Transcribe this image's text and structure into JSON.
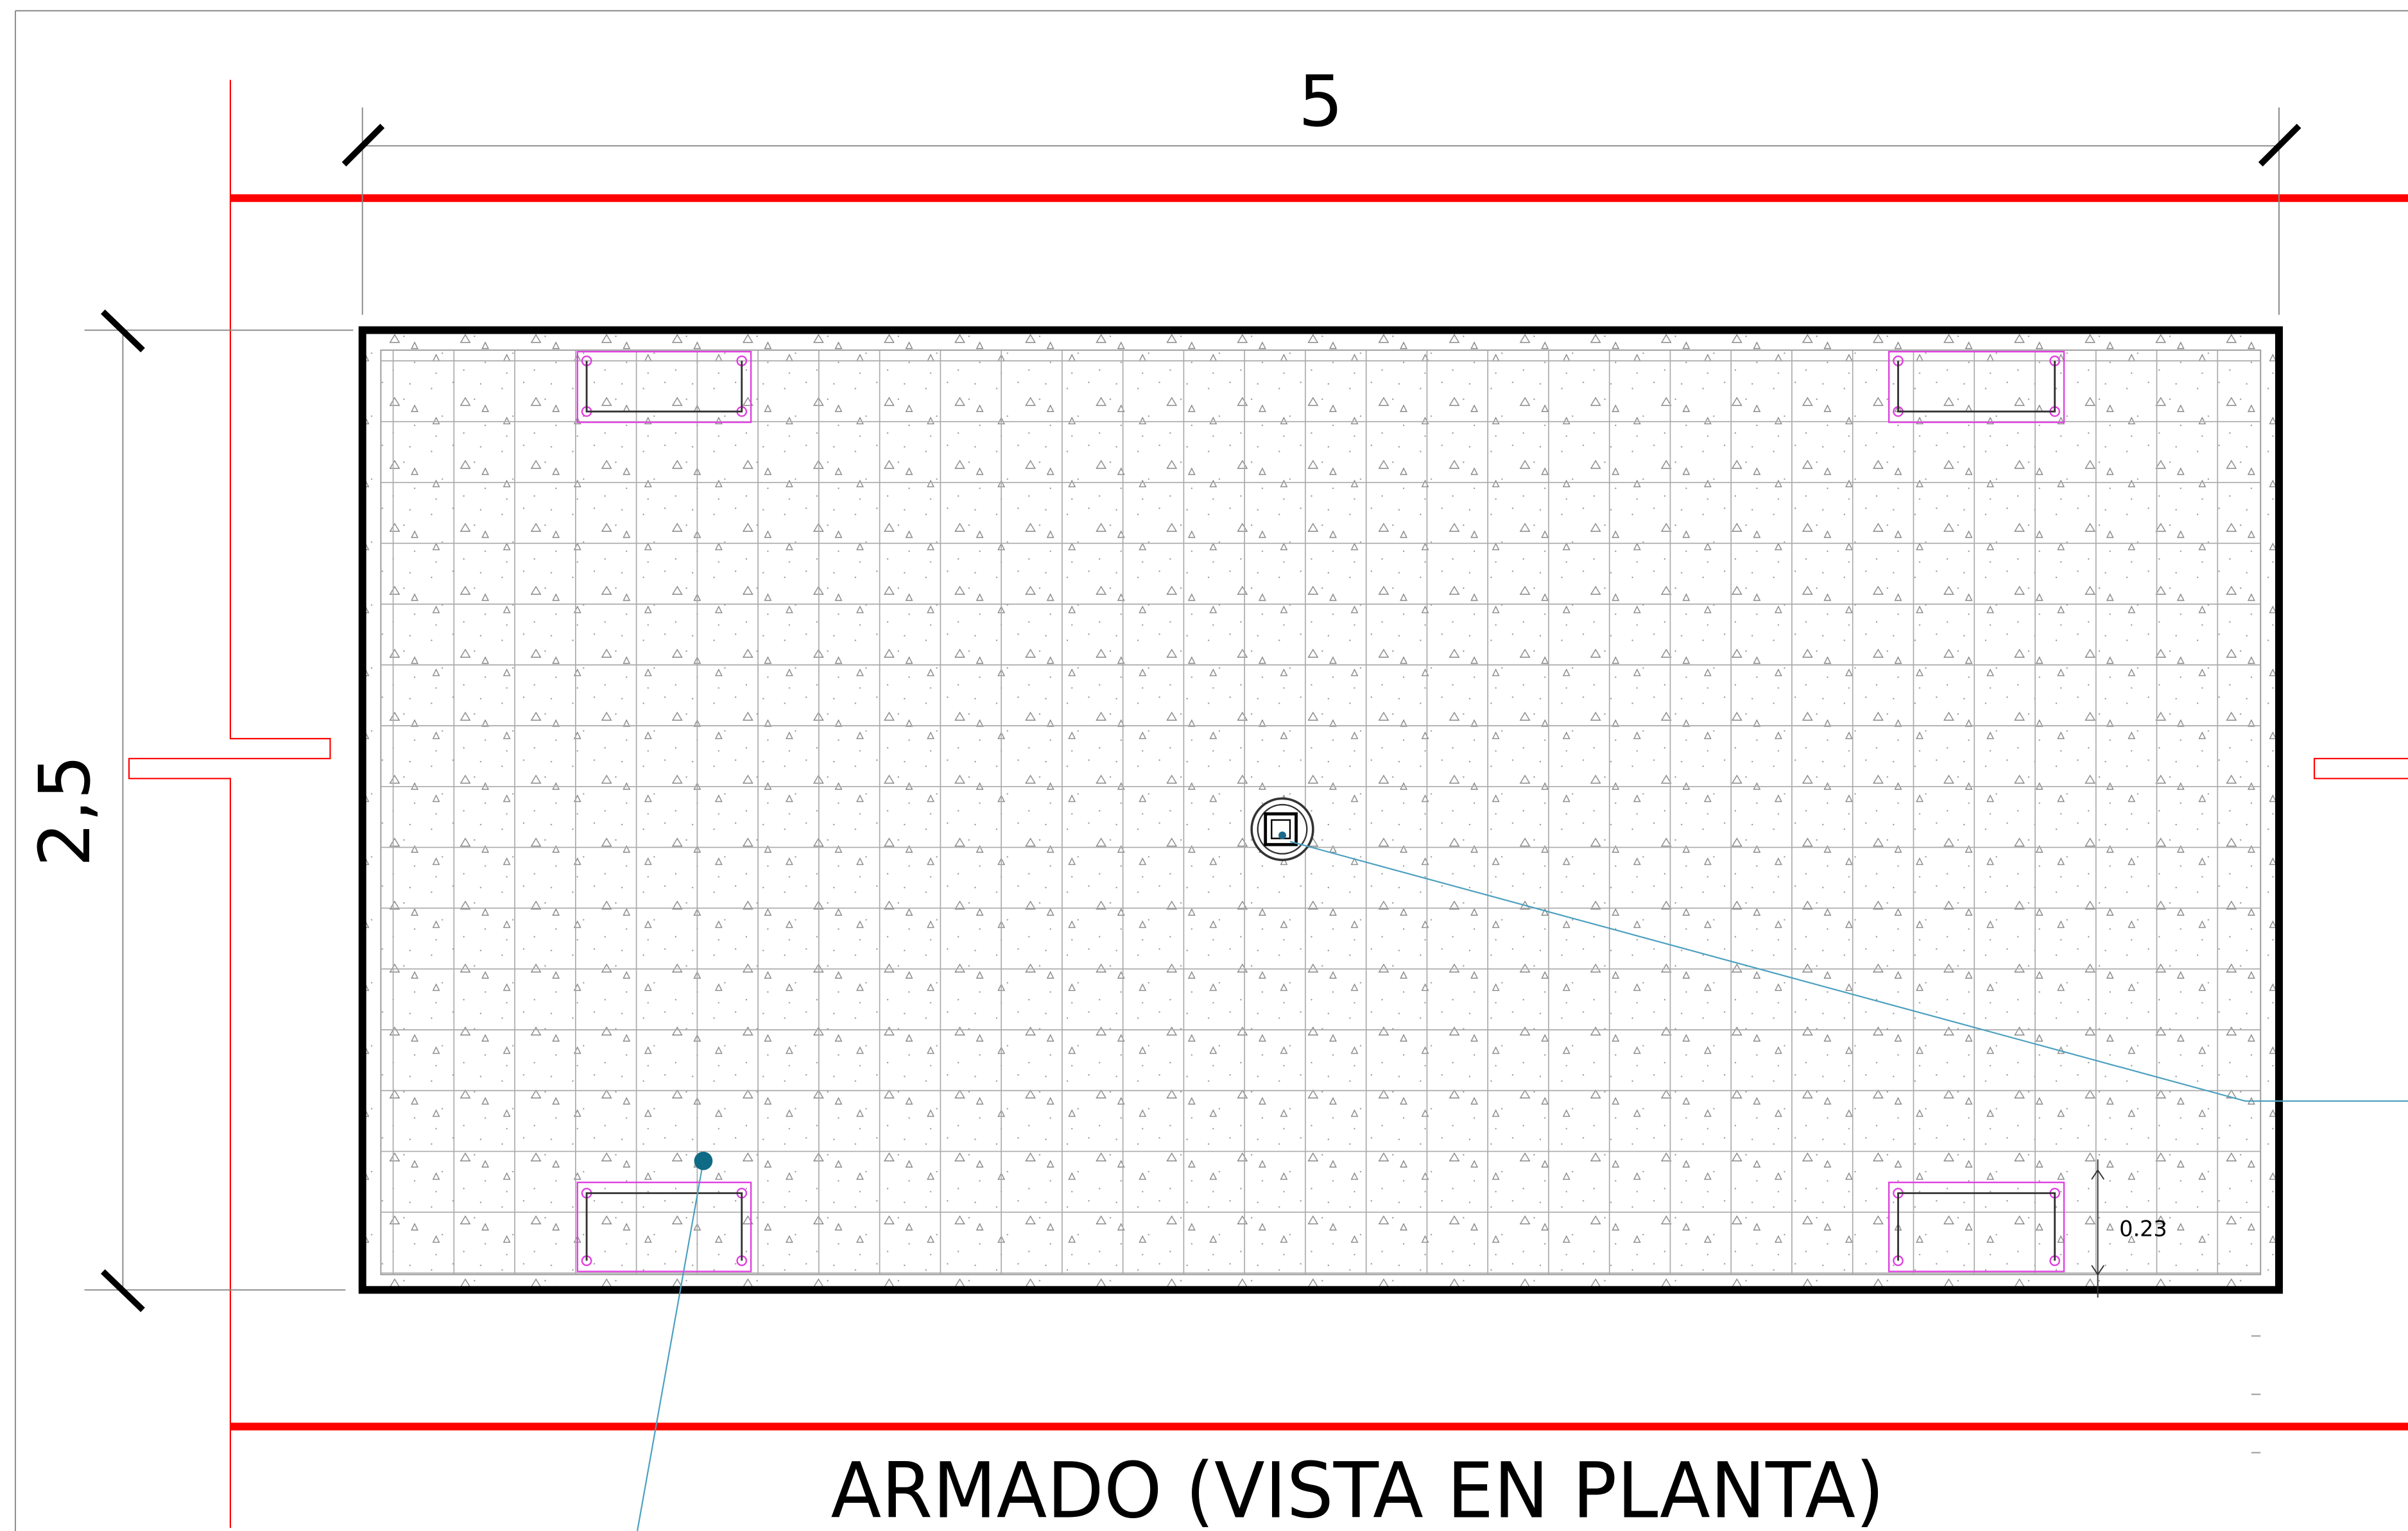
{
  "title": "ARMADO (VISTA EN PLANTA)",
  "dimensions": {
    "width_label": "5",
    "height_label": "2,5",
    "cover_label": "0.23"
  }
}
